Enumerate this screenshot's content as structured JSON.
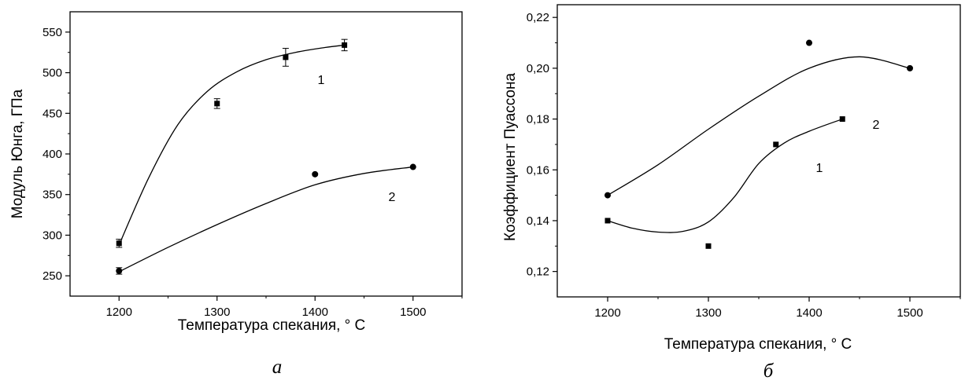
{
  "chart_data": [
    {
      "id": "a",
      "type": "scatter",
      "caption": "а",
      "xlabel": "Температура спекания, ° С",
      "ylabel": "Модуль Юнга, ГПа",
      "xlim": [
        1150,
        1550
      ],
      "ylim": [
        225,
        575
      ],
      "xticks": [
        1200,
        1300,
        1400,
        1500
      ],
      "xtick_labels": [
        "1200",
        "1300",
        "1400",
        "1500"
      ],
      "yticks": [
        250,
        300,
        350,
        400,
        450,
        500,
        550
      ],
      "ytick_labels": [
        "250",
        "300",
        "350",
        "400",
        "450",
        "500",
        "550"
      ],
      "grid": false,
      "series": [
        {
          "label": "1",
          "marker": "square",
          "x": [
            1200,
            1300,
            1370,
            1430
          ],
          "y": [
            290,
            462,
            519,
            534
          ],
          "yerr": [
            5,
            6,
            11,
            7
          ],
          "fit_x": [
            1200,
            1230,
            1260,
            1290,
            1320,
            1350,
            1380,
            1410,
            1430
          ],
          "fit_y": [
            288,
            370,
            436,
            477,
            501,
            516,
            525,
            531,
            534
          ]
        },
        {
          "label": "2",
          "marker": "circle",
          "x": [
            1200,
            1400,
            1500
          ],
          "y": [
            256,
            375,
            384
          ],
          "yerr": [
            4,
            0,
            0
          ],
          "fit_x": [
            1200,
            1250,
            1300,
            1350,
            1400,
            1450,
            1500
          ],
          "fit_y": [
            255,
            285,
            313,
            339,
            362,
            376,
            384
          ]
        }
      ]
    },
    {
      "id": "b",
      "type": "scatter",
      "caption": "б",
      "xlabel": "Температура спекания, ° С",
      "ylabel": "Коэффициент Пуассона",
      "xlim": [
        1150,
        1550
      ],
      "ylim": [
        0.11,
        0.225
      ],
      "xticks": [
        1200,
        1300,
        1400,
        1500
      ],
      "xtick_labels": [
        "1200",
        "1300",
        "1400",
        "1500"
      ],
      "yticks": [
        0.12,
        0.14,
        0.16,
        0.18,
        0.2,
        0.22
      ],
      "ytick_labels": [
        "0,12",
        "0,14",
        "0,16",
        "0,18",
        "0,20",
        "0,22"
      ],
      "grid": false,
      "series": [
        {
          "label": "1",
          "marker": "square",
          "x": [
            1200,
            1300,
            1367,
            1433
          ],
          "y": [
            0.14,
            0.13,
            0.17,
            0.18
          ],
          "fit_x": [
            1200,
            1225,
            1250,
            1275,
            1300,
            1325,
            1350,
            1375,
            1400,
            1433
          ],
          "fit_y": [
            0.14,
            0.137,
            0.1355,
            0.1358,
            0.1395,
            0.149,
            0.1625,
            0.1705,
            0.1752,
            0.18
          ]
        },
        {
          "label": "2",
          "marker": "circle",
          "x": [
            1200,
            1400,
            1500
          ],
          "y": [
            0.15,
            0.21,
            0.2
          ],
          "fit_x": [
            1200,
            1250,
            1300,
            1350,
            1400,
            1450,
            1500
          ],
          "fit_y": [
            0.15,
            0.162,
            0.176,
            0.189,
            0.2,
            0.2045,
            0.2
          ]
        }
      ]
    }
  ]
}
